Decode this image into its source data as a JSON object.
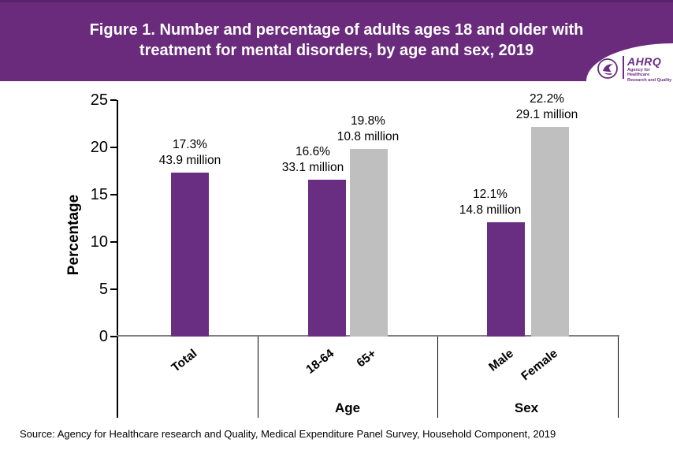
{
  "header": {
    "title_line1": "Figure 1. Number and percentage of adults ages 18 and older with",
    "title_line2": "treatment for mental disorders, by age and sex, 2019",
    "logo": {
      "acronym": "AHRQ",
      "org_line1": "Agency for Healthcare",
      "org_line2": "Research and Quality"
    }
  },
  "chart_data": {
    "type": "bar",
    "title": "Number and percentage of adults ages 18 and older with treatment for mental disorders, by age and sex, 2019",
    "ylabel": "Percentage",
    "ylim": [
      0,
      25
    ],
    "yticks": [
      0,
      5,
      10,
      15,
      20,
      25
    ],
    "grid": false,
    "legend": "none",
    "bar_color_purple": "#692D82",
    "bar_color_gray": "#BFBFBF",
    "groups": [
      {
        "group_label": "",
        "bars": [
          {
            "category": "Total",
            "value": 17.3,
            "percent_label": "17.3%",
            "count_label": "43.9 million",
            "color": "#692D82"
          }
        ]
      },
      {
        "group_label": "Age",
        "bars": [
          {
            "category": "18-64",
            "value": 16.6,
            "percent_label": "16.6%",
            "count_label": "33.1 million",
            "color": "#692D82"
          },
          {
            "category": "65+",
            "value": 19.8,
            "percent_label": "19.8%",
            "count_label": "10.8 million",
            "color": "#BFBFBF"
          }
        ]
      },
      {
        "group_label": "Sex",
        "bars": [
          {
            "category": "Male",
            "value": 12.1,
            "percent_label": "12.1%",
            "count_label": "14.8 million",
            "color": "#692D82"
          },
          {
            "category": "Female",
            "value": 22.2,
            "percent_label": "22.2%",
            "count_label": "29.1 million",
            "color": "#BFBFBF"
          }
        ]
      }
    ]
  },
  "source": "Source: Agency for Healthcare research and Quality, Medical Expenditure Panel Survey,  Household Component, 2019"
}
